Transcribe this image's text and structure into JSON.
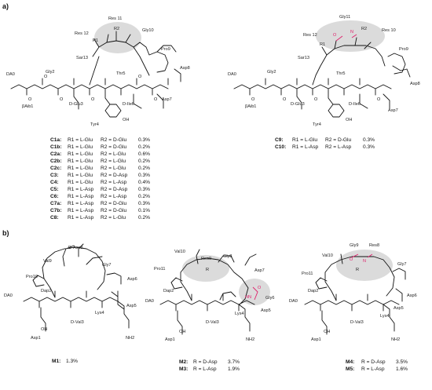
{
  "panels": {
    "a": "a)",
    "b": "b)"
  },
  "mol_a1": {
    "residues": [
      "Res 11",
      "Res 12",
      "Gly10",
      "Pro9",
      "Sar13",
      "Asp8",
      "DA0",
      "Gly2",
      "Thr5",
      "βAib1",
      "D-Glu3",
      "D-Ile6",
      "Asp7",
      "Tyr4"
    ],
    "r1": "R1",
    "r2": "R2",
    "oh": "OH",
    "rows": [
      {
        "id": "C1a:",
        "r1": "R1 = L-Glu",
        "r2": "R2 = D-Glu",
        "pct": "0.3%"
      },
      {
        "id": "C1b:",
        "r1": "R1 = L-Glu",
        "r2": "R2 = D-Glu",
        "pct": "0.2%"
      },
      {
        "id": "C2a:",
        "r1": "R1 = L-Glu",
        "r2": "R2 = L-Glu",
        "pct": "0.6%"
      },
      {
        "id": "C2b:",
        "r1": "R1 = L-Glu",
        "r2": "R2 = L-Glu",
        "pct": "0.2%"
      },
      {
        "id": "C2c:",
        "r1": "R1 = L-Glu",
        "r2": "R2 = L-Glu",
        "pct": "0.2%"
      },
      {
        "id": "C3:",
        "r1": "R1 = L-Glu",
        "r2": "R2 = D-Asp",
        "pct": "0.3%"
      },
      {
        "id": "C4:",
        "r1": "R1 = L-Glu",
        "r2": "R2 = L-Asp",
        "pct": "0.4%"
      },
      {
        "id": "C5:",
        "r1": "R1 = L-Asp",
        "r2": "R2 = D-Asp",
        "pct": "0.3%"
      },
      {
        "id": "C6:",
        "r1": "R1 = L-Asp",
        "r2": "R2 = L-Asp",
        "pct": "0.2%"
      },
      {
        "id": "C7a:",
        "r1": "R1 = L-Asp",
        "r2": "R2 = D-Glu",
        "pct": "0.3%"
      },
      {
        "id": "C7b:",
        "r1": "R1 = L-Asp",
        "r2": "R2 = D-Glu",
        "pct": "0.1%"
      },
      {
        "id": "C8:",
        "r1": "R1 = L-Asp",
        "r2": "R2 = L-Glu",
        "pct": "0.2%"
      }
    ]
  },
  "mol_a2": {
    "residues": [
      "Gly11",
      "Res 12",
      "Res 10",
      "Sar13",
      "Pro9",
      "DA0",
      "Gly2",
      "Thr5",
      "Asp8",
      "βAib1",
      "D-Glu3",
      "D-Ile6",
      "Asp7",
      "Tyr4"
    ],
    "r1": "R1",
    "r2": "R2",
    "oh": "OH",
    "rows": [
      {
        "id": "C9:",
        "r1": "R1 = L-Glu",
        "r2": "R2 = D-Glu",
        "pct": "0.3%"
      },
      {
        "id": "C10:",
        "r1": "R1 = L-Asp",
        "r2": "R2 = L-Asp",
        "pct": "0.3%"
      }
    ]
  },
  "mol_b1": {
    "residues": [
      "D-Asp8",
      "Gly7",
      "Val9",
      "Asp6",
      "Pro10",
      "Asp5",
      "Dap2",
      "DA0",
      "Lys4",
      "D-Val3",
      "Asp1"
    ],
    "nh2": "NH2",
    "oh": "OH",
    "caption": {
      "id": "M1:",
      "pct": "1.3%"
    }
  },
  "mol_b2": {
    "residues": [
      "Val10",
      "Res9",
      "Gly8",
      "Asp7",
      "Pro11",
      "Gly6",
      "Dap2",
      "DA0",
      "Asp5",
      "Lys4",
      "D-Val3",
      "Asp1"
    ],
    "r": "R",
    "nh2": "NH2",
    "oh": "OH",
    "hn": "HN",
    "rows": [
      {
        "id": "M2:",
        "r": "R = D-Asp",
        "pct": "3.7%"
      },
      {
        "id": "M3:",
        "r": "R = L-Asp",
        "pct": "1.9%"
      }
    ]
  },
  "mol_b3": {
    "residues": [
      "Gly9",
      "Res8",
      "Val10",
      "Gly7",
      "Pro11",
      "Asp6",
      "Dap2",
      "DA0",
      "Asp5",
      "Lys4",
      "D-Val3",
      "Asp1"
    ],
    "r": "R",
    "nh2": "NH2",
    "oh": "OH",
    "rows": [
      {
        "id": "M4:",
        "r": "R = D-Asp",
        "pct": "3.5%"
      },
      {
        "id": "M5:",
        "r": "R = L-Asp",
        "pct": "1.6%"
      }
    ]
  }
}
